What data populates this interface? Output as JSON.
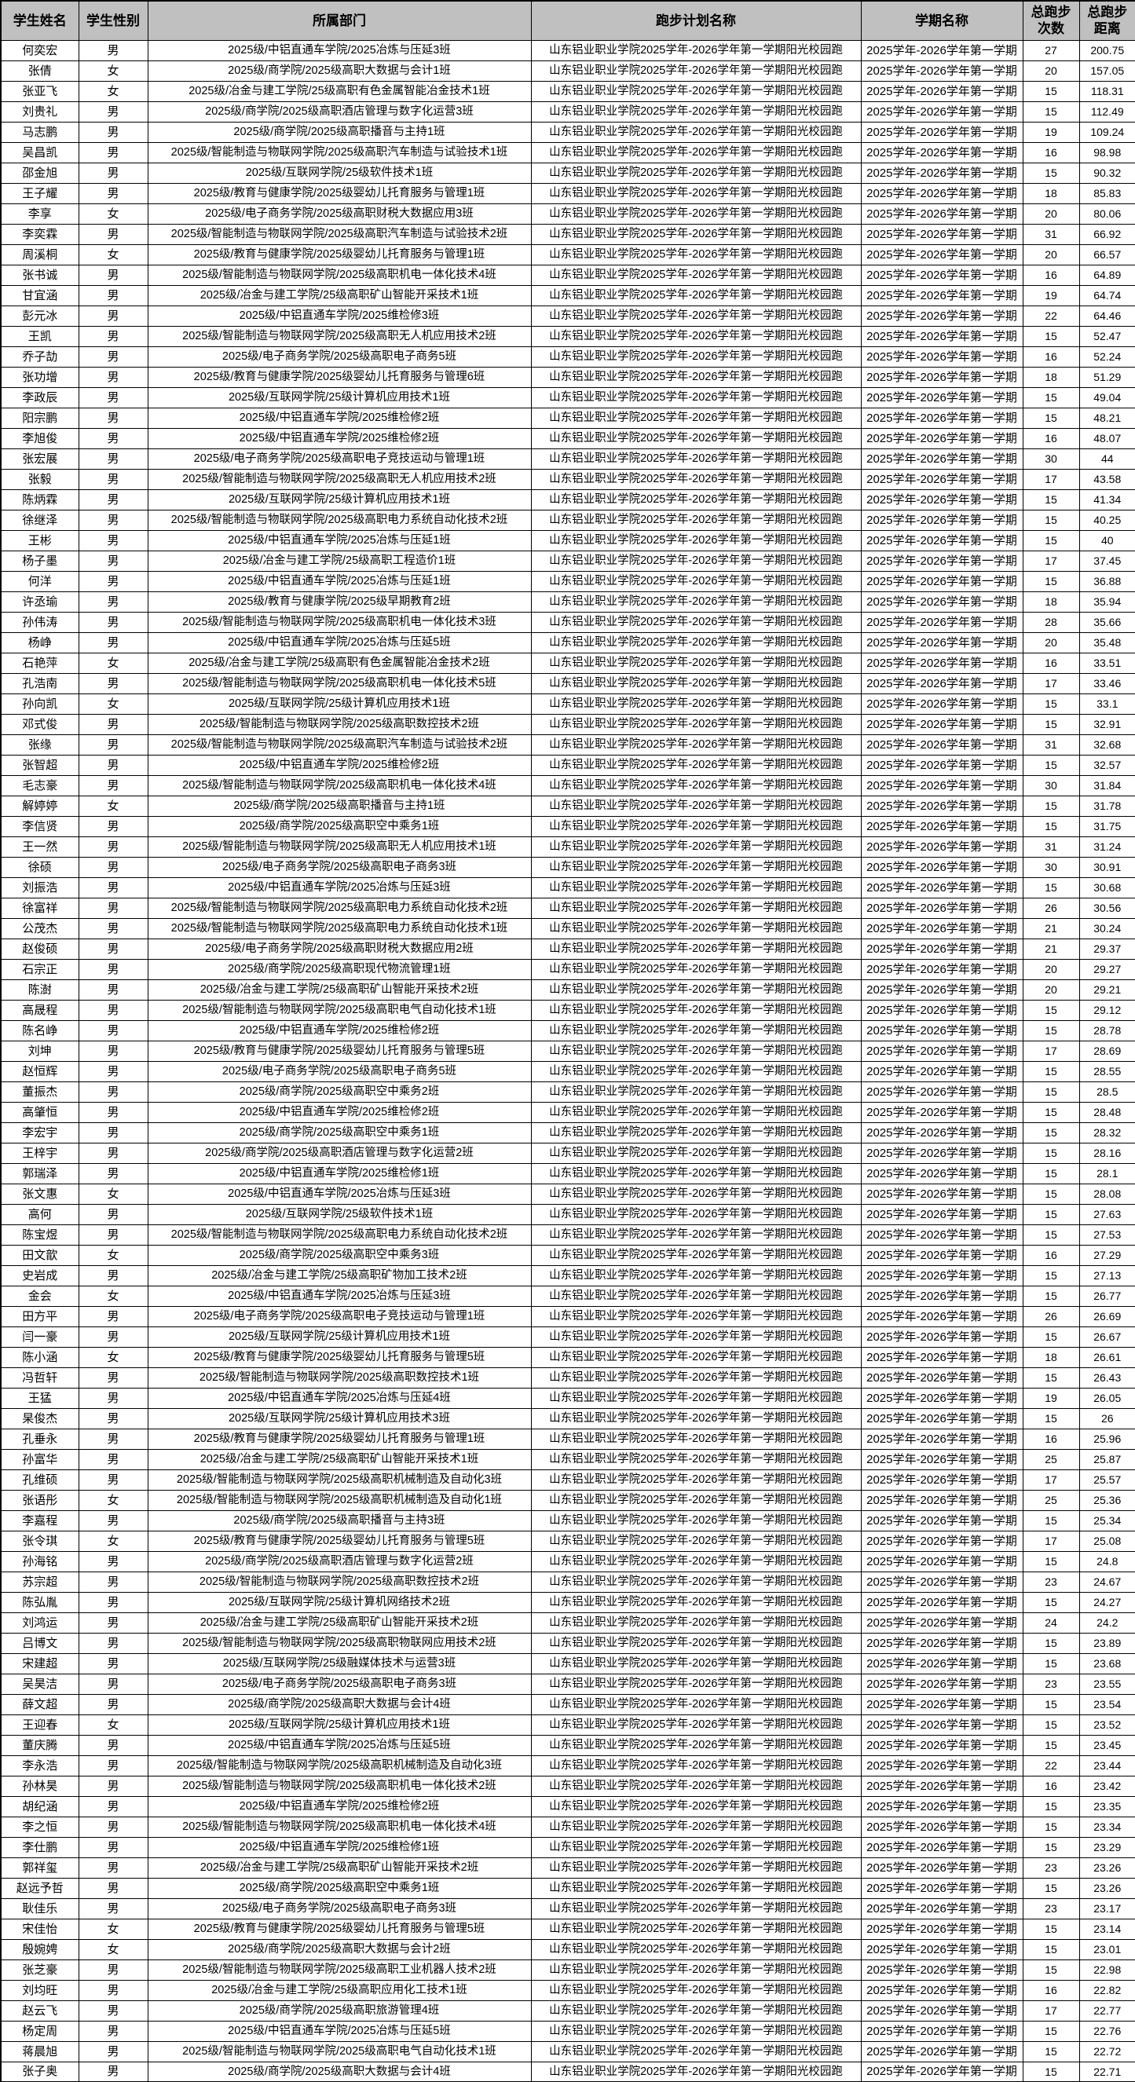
{
  "colors": {
    "header_bg": "#c0c0c0",
    "border": "#000000",
    "row_bg": "#ffffff",
    "text": "#000000"
  },
  "table": {
    "columns": [
      {
        "key": "name",
        "label": "学生姓名"
      },
      {
        "key": "gender",
        "label": "学生性别"
      },
      {
        "key": "dept",
        "label": "所属部门"
      },
      {
        "key": "plan",
        "label": "跑步计划名称"
      },
      {
        "key": "semester",
        "label": "学期名称"
      },
      {
        "key": "runs",
        "label": "总跑步\n次数"
      },
      {
        "key": "distance",
        "label": "总跑步\n距离"
      }
    ],
    "plan_name": "山东铝业职业学院2025学年-2026学年第一学期阳光校园跑",
    "semester_name": "2025学年-2026学年第一学期",
    "rows": [
      [
        "何奕宏",
        "男",
        "2025级/中铝直通车学院/2025冶炼与压延3班",
        "27",
        "200.75"
      ],
      [
        "张倩",
        "女",
        "2025级/商学院/2025级高职大数据与会计1班",
        "20",
        "157.05"
      ],
      [
        "张亚飞",
        "女",
        "2025级/冶金与建工学院/25级高职有色金属智能冶金技术1班",
        "15",
        "118.31"
      ],
      [
        "刘贵礼",
        "男",
        "2025级/商学院/2025级高职酒店管理与数字化运营3班",
        "15",
        "112.49"
      ],
      [
        "马志鹏",
        "男",
        "2025级/商学院/2025级高职播音与主持1班",
        "19",
        "109.24"
      ],
      [
        "吴昌凯",
        "男",
        "2025级/智能制造与物联网学院/2025级高职汽车制造与试验技术1班",
        "16",
        "98.98"
      ],
      [
        "邵金旭",
        "男",
        "2025级/互联网学院/25级软件技术1班",
        "15",
        "90.32"
      ],
      [
        "王子耀",
        "男",
        "2025级/教育与健康学院/2025级婴幼儿托育服务与管理1班",
        "18",
        "85.83"
      ],
      [
        "李享",
        "女",
        "2025级/电子商务学院/2025级高职财税大数据应用3班",
        "20",
        "80.06"
      ],
      [
        "李奕霖",
        "男",
        "2025级/智能制造与物联网学院/2025级高职汽车制造与试验技术2班",
        "31",
        "66.92"
      ],
      [
        "周溪桐",
        "女",
        "2025级/教育与健康学院/2025级婴幼儿托育服务与管理1班",
        "20",
        "66.57"
      ],
      [
        "张书诚",
        "男",
        "2025级/智能制造与物联网学院/2025级高职机电一体化技术4班",
        "16",
        "64.89"
      ],
      [
        "甘宜涵",
        "男",
        "2025级/冶金与建工学院/25级高职矿山智能开采技术1班",
        "19",
        "64.74"
      ],
      [
        "彭元冰",
        "男",
        "2025级/中铝直通车学院/2025维检修3班",
        "22",
        "64.46"
      ],
      [
        "王凯",
        "男",
        "2025级/智能制造与物联网学院/2025级高职无人机应用技术2班",
        "15",
        "52.47"
      ],
      [
        "乔子劼",
        "男",
        "2025级/电子商务学院/2025级高职电子商务5班",
        "16",
        "52.24"
      ],
      [
        "张功增",
        "男",
        "2025级/教育与健康学院/2025级婴幼儿托育服务与管理6班",
        "18",
        "51.29"
      ],
      [
        "李政辰",
        "男",
        "2025级/互联网学院/25级计算机应用技术1班",
        "15",
        "49.04"
      ],
      [
        "阳宗鹏",
        "男",
        "2025级/中铝直通车学院/2025维检修2班",
        "15",
        "48.21"
      ],
      [
        "李旭俊",
        "男",
        "2025级/中铝直通车学院/2025维检修2班",
        "16",
        "48.07"
      ],
      [
        "张宏展",
        "男",
        "2025级/电子商务学院/2025级高职电子竞技运动与管理1班",
        "30",
        "44"
      ],
      [
        "张毅",
        "男",
        "2025级/智能制造与物联网学院/2025级高职无人机应用技术2班",
        "17",
        "43.58"
      ],
      [
        "陈炳霖",
        "男",
        "2025级/互联网学院/25级计算机应用技术1班",
        "15",
        "41.34"
      ],
      [
        "徐继泽",
        "男",
        "2025级/智能制造与物联网学院/2025级高职电力系统自动化技术2班",
        "15",
        "40.25"
      ],
      [
        "王彬",
        "男",
        "2025级/中铝直通车学院/2025冶炼与压延1班",
        "15",
        "40"
      ],
      [
        "杨子墨",
        "男",
        "2025级/冶金与建工学院/25级高职工程造价1班",
        "17",
        "37.45"
      ],
      [
        "何洋",
        "男",
        "2025级/中铝直通车学院/2025冶炼与压延1班",
        "15",
        "36.88"
      ],
      [
        "许丞瑜",
        "男",
        "2025级/教育与健康学院/2025级早期教育2班",
        "18",
        "35.94"
      ],
      [
        "孙伟涛",
        "男",
        "2025级/智能制造与物联网学院/2025级高职机电一体化技术3班",
        "28",
        "35.66"
      ],
      [
        "杨峥",
        "男",
        "2025级/中铝直通车学院/2025冶炼与压延5班",
        "20",
        "35.48"
      ],
      [
        "石艳萍",
        "女",
        "2025级/冶金与建工学院/25级高职有色金属智能冶金技术2班",
        "16",
        "33.51"
      ],
      [
        "孔浩南",
        "男",
        "2025级/智能制造与物联网学院/2025级高职机电一体化技术5班",
        "17",
        "33.46"
      ],
      [
        "孙向凯",
        "女",
        "2025级/互联网学院/25级计算机应用技术1班",
        "15",
        "33.1"
      ],
      [
        "邓式俊",
        "男",
        "2025级/智能制造与物联网学院/2025级高职数控技术2班",
        "15",
        "32.91"
      ],
      [
        "张缘",
        "男",
        "2025级/智能制造与物联网学院/2025级高职汽车制造与试验技术2班",
        "31",
        "32.68"
      ],
      [
        "张智超",
        "男",
        "2025级/中铝直通车学院/2025维检修2班",
        "15",
        "32.57"
      ],
      [
        "毛志豪",
        "男",
        "2025级/智能制造与物联网学院/2025级高职机电一体化技术4班",
        "30",
        "31.84"
      ],
      [
        "解婷婷",
        "女",
        "2025级/商学院/2025级高职播音与主持1班",
        "15",
        "31.78"
      ],
      [
        "李信贤",
        "男",
        "2025级/商学院/2025级高职空中乘务1班",
        "15",
        "31.75"
      ],
      [
        "王一然",
        "男",
        "2025级/智能制造与物联网学院/2025级高职无人机应用技术1班",
        "31",
        "31.24"
      ],
      [
        "徐硕",
        "男",
        "2025级/电子商务学院/2025级高职电子商务3班",
        "30",
        "30.91"
      ],
      [
        "刘振浩",
        "男",
        "2025级/中铝直通车学院/2025冶炼与压延3班",
        "15",
        "30.68"
      ],
      [
        "徐富祥",
        "男",
        "2025级/智能制造与物联网学院/2025级高职电力系统自动化技术2班",
        "26",
        "30.56"
      ],
      [
        "公茂杰",
        "男",
        "2025级/智能制造与物联网学院/2025级高职电力系统自动化技术1班",
        "21",
        "30.24"
      ],
      [
        "赵俊硕",
        "男",
        "2025级/电子商务学院/2025级高职财税大数据应用2班",
        "21",
        "29.37"
      ],
      [
        "石宗正",
        "男",
        "2025级/商学院/2025级高职现代物流管理1班",
        "20",
        "29.27"
      ],
      [
        "陈澍",
        "男",
        "2025级/冶金与建工学院/25级高职矿山智能开采技术2班",
        "20",
        "29.21"
      ],
      [
        "高晟程",
        "男",
        "2025级/智能制造与物联网学院/2025级高职电气自动化技术1班",
        "15",
        "29.12"
      ],
      [
        "陈名峥",
        "男",
        "2025级/中铝直通车学院/2025维检修2班",
        "15",
        "28.78"
      ],
      [
        "刘坤",
        "男",
        "2025级/教育与健康学院/2025级婴幼儿托育服务与管理5班",
        "17",
        "28.69"
      ],
      [
        "赵恒辉",
        "男",
        "2025级/电子商务学院/2025级高职电子商务5班",
        "15",
        "28.55"
      ],
      [
        "董振杰",
        "男",
        "2025级/商学院/2025级高职空中乘务2班",
        "15",
        "28.5"
      ],
      [
        "高肇恒",
        "男",
        "2025级/中铝直通车学院/2025维检修2班",
        "15",
        "28.48"
      ],
      [
        "李宏宇",
        "男",
        "2025级/商学院/2025级高职空中乘务1班",
        "15",
        "28.32"
      ],
      [
        "王梓宇",
        "男",
        "2025级/商学院/2025级高职酒店管理与数字化运营2班",
        "15",
        "28.16"
      ],
      [
        "郭瑞泽",
        "男",
        "2025级/中铝直通车学院/2025维检修1班",
        "15",
        "28.1"
      ],
      [
        "张文惠",
        "女",
        "2025级/中铝直通车学院/2025冶炼与压延3班",
        "15",
        "28.08"
      ],
      [
        "高何",
        "男",
        "2025级/互联网学院/25级软件技术1班",
        "15",
        "27.63"
      ],
      [
        "陈宝煜",
        "男",
        "2025级/智能制造与物联网学院/2025级高职电力系统自动化技术2班",
        "15",
        "27.53"
      ],
      [
        "田文歆",
        "女",
        "2025级/商学院/2025级高职空中乘务3班",
        "16",
        "27.29"
      ],
      [
        "史岩成",
        "男",
        "2025级/冶金与建工学院/25级高职矿物加工技术2班",
        "15",
        "27.13"
      ],
      [
        "金会",
        "女",
        "2025级/中铝直通车学院/2025冶炼与压延3班",
        "15",
        "26.77"
      ],
      [
        "田方平",
        "男",
        "2025级/电子商务学院/2025级高职电子竞技运动与管理1班",
        "26",
        "26.69"
      ],
      [
        "闫一豪",
        "男",
        "2025级/互联网学院/25级计算机应用技术1班",
        "15",
        "26.67"
      ],
      [
        "陈小涵",
        "女",
        "2025级/教育与健康学院/2025级婴幼儿托育服务与管理5班",
        "18",
        "26.61"
      ],
      [
        "冯哲轩",
        "男",
        "2025级/智能制造与物联网学院/2025级高职数控技术1班",
        "15",
        "26.43"
      ],
      [
        "王猛",
        "男",
        "2025级/中铝直通车学院/2025冶炼与压延4班",
        "19",
        "26.05"
      ],
      [
        "杲俊杰",
        "男",
        "2025级/互联网学院/25级计算机应用技术3班",
        "15",
        "26"
      ],
      [
        "孔垂永",
        "男",
        "2025级/教育与健康学院/2025级婴幼儿托育服务与管理1班",
        "16",
        "25.96"
      ],
      [
        "孙富华",
        "男",
        "2025级/冶金与建工学院/25级高职矿山智能开采技术1班",
        "25",
        "25.87"
      ],
      [
        "孔维硕",
        "男",
        "2025级/智能制造与物联网学院/2025级高职机械制造及自动化3班",
        "17",
        "25.57"
      ],
      [
        "张语彤",
        "女",
        "2025级/智能制造与物联网学院/2025级高职机械制造及自动化1班",
        "25",
        "25.36"
      ],
      [
        "李嘉程",
        "男",
        "2025级/商学院/2025级高职播音与主持3班",
        "15",
        "25.34"
      ],
      [
        "张令琪",
        "女",
        "2025级/教育与健康学院/2025级婴幼儿托育服务与管理5班",
        "17",
        "25.08"
      ],
      [
        "孙海铭",
        "男",
        "2025级/商学院/2025级高职酒店管理与数字化运营2班",
        "15",
        "24.8"
      ],
      [
        "苏宗超",
        "男",
        "2025级/智能制造与物联网学院/2025级高职数控技术2班",
        "23",
        "24.67"
      ],
      [
        "陈弘胤",
        "男",
        "2025级/互联网学院/25级计算机网络技术2班",
        "15",
        "24.27"
      ],
      [
        "刘鸿运",
        "男",
        "2025级/冶金与建工学院/25级高职矿山智能开采技术2班",
        "24",
        "24.2"
      ],
      [
        "吕博文",
        "男",
        "2025级/智能制造与物联网学院/2025级高职物联网应用技术2班",
        "15",
        "23.89"
      ],
      [
        "宋建超",
        "男",
        "2025级/互联网学院/25级融媒体技术与运营3班",
        "15",
        "23.68"
      ],
      [
        "吴昊洁",
        "男",
        "2025级/电子商务学院/2025级高职电子商务3班",
        "23",
        "23.55"
      ],
      [
        "薛文超",
        "男",
        "2025级/商学院/2025级高职大数据与会计4班",
        "15",
        "23.54"
      ],
      [
        "王迎春",
        "女",
        "2025级/互联网学院/25级计算机应用技术1班",
        "15",
        "23.52"
      ],
      [
        "董庆腾",
        "男",
        "2025级/中铝直通车学院/2025冶炼与压延5班",
        "15",
        "23.45"
      ],
      [
        "李永浩",
        "男",
        "2025级/智能制造与物联网学院/2025级高职机械制造及自动化3班",
        "22",
        "23.44"
      ],
      [
        "孙林昊",
        "男",
        "2025级/智能制造与物联网学院/2025级高职机电一体化技术2班",
        "16",
        "23.42"
      ],
      [
        "胡纪涵",
        "男",
        "2025级/中铝直通车学院/2025维检修2班",
        "15",
        "23.35"
      ],
      [
        "李之恒",
        "男",
        "2025级/智能制造与物联网学院/2025级高职机电一体化技术4班",
        "15",
        "23.34"
      ],
      [
        "李仕鹏",
        "男",
        "2025级/中铝直通车学院/2025维检修1班",
        "15",
        "23.29"
      ],
      [
        "郭祥玺",
        "男",
        "2025级/冶金与建工学院/25级高职矿山智能开采技术2班",
        "23",
        "23.26"
      ],
      [
        "赵远予哲",
        "男",
        "2025级/商学院/2025级高职空中乘务1班",
        "15",
        "23.26"
      ],
      [
        "耿佳乐",
        "男",
        "2025级/电子商务学院/2025级高职电子商务3班",
        "23",
        "23.17"
      ],
      [
        "宋佳怡",
        "女",
        "2025级/教育与健康学院/2025级婴幼儿托育服务与管理5班",
        "15",
        "23.14"
      ],
      [
        "殷婉娉",
        "女",
        "2025级/商学院/2025级高职大数据与会计2班",
        "15",
        "23.01"
      ],
      [
        "张芝豪",
        "男",
        "2025级/智能制造与物联网学院/2025级高职工业机器人技术2班",
        "15",
        "22.98"
      ],
      [
        "刘均旺",
        "男",
        "2025级/冶金与建工学院/25级高职应用化工技术1班",
        "16",
        "22.82"
      ],
      [
        "赵云飞",
        "男",
        "2025级/商学院/2025级高职旅游管理4班",
        "17",
        "22.77"
      ],
      [
        "杨定周",
        "男",
        "2025级/中铝直通车学院/2025冶炼与压延5班",
        "15",
        "22.76"
      ],
      [
        "蒋晨旭",
        "男",
        "2025级/智能制造与物联网学院/2025级高职电气自动化技术1班",
        "15",
        "22.72"
      ],
      [
        "张子奥",
        "男",
        "2025级/商学院/2025级高职大数据与会计4班",
        "15",
        "22.71"
      ]
    ]
  }
}
